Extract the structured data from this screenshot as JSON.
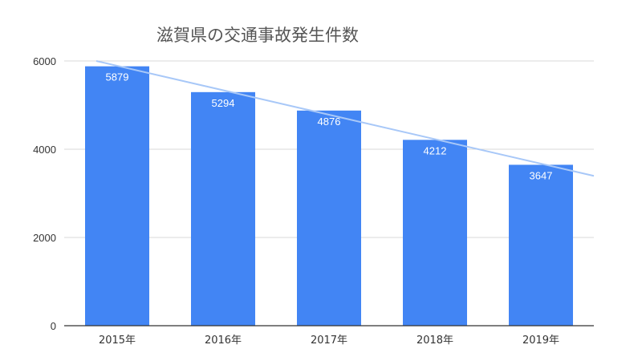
{
  "chart_data": {
    "type": "bar",
    "title": "滋賀県の交通事故発生件数",
    "categories": [
      "2015年",
      "2016年",
      "2017年",
      "2018年",
      "2019年"
    ],
    "values": [
      5879,
      5294,
      4876,
      4212,
      3647
    ],
    "data_labels": [
      "5879",
      "5294",
      "4876",
      "4212",
      "3647"
    ],
    "ylim": [
      0,
      6000
    ],
    "yticks": [
      0,
      2000,
      4000,
      6000
    ],
    "ytick_labels": [
      "0",
      "2000",
      "4000",
      "6000"
    ],
    "grid": true,
    "trendline": {
      "type": "linear",
      "visible": true
    },
    "colors": {
      "bar": "#4285f4",
      "trendline": "#a8c8f8",
      "grid": "#d9d9d9",
      "axis": "#333333"
    }
  }
}
